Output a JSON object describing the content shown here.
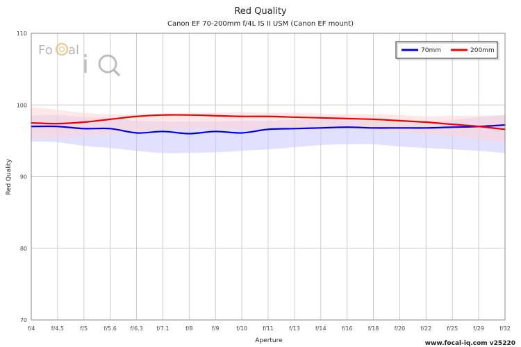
{
  "chart_data": {
    "type": "line",
    "title": "Red Quality",
    "subtitle": "Canon EF 70-200mm f/4L IS II USM (Canon EF mount)",
    "xlabel": "Aperture",
    "ylabel": "Red Quality",
    "categories": [
      "f/4",
      "f/4.5",
      "f/5",
      "f/5.6",
      "f/6.3",
      "f/7.1",
      "f/8",
      "f/9",
      "f/10",
      "f/11",
      "f/13",
      "f/14",
      "f/16",
      "f/18",
      "f/20",
      "f/22",
      "f/25",
      "f/29",
      "f/32"
    ],
    "ylim": [
      70,
      110
    ],
    "yticks": [
      70,
      80,
      90,
      100,
      110
    ],
    "grid": true,
    "legend_position": "top-right",
    "series": [
      {
        "name": "70mm",
        "color": "#0000dd",
        "band_color": "#c8c8ff",
        "values": [
          97.0,
          97.0,
          96.7,
          96.7,
          96.1,
          96.3,
          96.0,
          96.3,
          96.1,
          96.6,
          96.7,
          96.8,
          96.9,
          96.8,
          96.8,
          96.8,
          96.9,
          97.0,
          97.2
        ],
        "band_upper": [
          98.5,
          98.6,
          98.3,
          98.1,
          97.8,
          97.7,
          97.7,
          97.7,
          97.8,
          97.8,
          97.9,
          97.9,
          97.8,
          97.8,
          97.6,
          97.6,
          97.9,
          98.3,
          98.6
        ],
        "band_lower": [
          94.9,
          94.8,
          94.3,
          94.0,
          93.6,
          93.3,
          93.3,
          93.4,
          93.6,
          93.8,
          94.1,
          94.4,
          94.5,
          94.5,
          94.2,
          94.0,
          93.8,
          93.6,
          93.3
        ]
      },
      {
        "name": "200mm",
        "color": "#ee0000",
        "band_color": "#ffd4d4",
        "values": [
          97.5,
          97.4,
          97.6,
          98.0,
          98.4,
          98.6,
          98.6,
          98.5,
          98.4,
          98.4,
          98.3,
          98.2,
          98.1,
          98.0,
          97.8,
          97.6,
          97.3,
          97.0,
          96.6
        ],
        "band_upper": [
          99.7,
          99.3,
          98.9,
          98.7,
          98.7,
          98.8,
          98.9,
          98.9,
          99.0,
          98.9,
          98.9,
          98.8,
          98.7,
          98.7,
          98.6,
          98.4,
          98.5,
          98.5,
          98.6
        ],
        "band_lower": [
          95.3,
          95.4,
          95.6,
          96.0,
          96.3,
          96.6,
          96.7,
          96.7,
          96.6,
          96.5,
          96.6,
          96.6,
          96.7,
          96.5,
          96.2,
          96.0,
          95.6,
          95.2,
          94.8
        ]
      }
    ]
  },
  "watermark": {
    "logo_text": "FoCal iQ"
  },
  "footer": {
    "text": "www.focal-iq.com  v25220"
  }
}
